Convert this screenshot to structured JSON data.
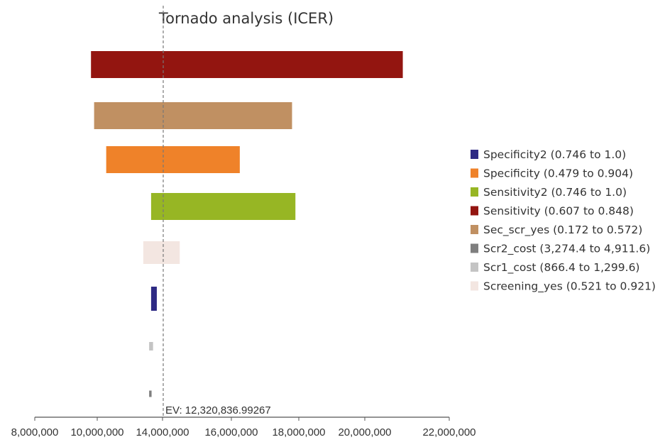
{
  "chart_data": {
    "type": "tornado",
    "title": "Tornado analysis (ICER)",
    "xlim": [
      8000000,
      22000000
    ],
    "x_ticks": [
      8000000,
      10000000,
      14000000,
      16000000,
      18000000,
      20000000,
      22000000
    ],
    "x_tick_labels": [
      "8,000,000",
      "10,000,000",
      "14,000,000",
      "16,000,000",
      "18,000,000",
      "20,000,000",
      "22,000,000"
    ],
    "ev": 12320836.99267,
    "ev_label": "EV: 12,320,836.99267",
    "bars": [
      {
        "parameter": "Sensitivity",
        "low": 9800000,
        "high": 20900000,
        "color": "#931510"
      },
      {
        "parameter": "Sec_scr_yes",
        "low": 9900000,
        "high": 17800000,
        "color": "#C09062"
      },
      {
        "parameter": "Specificity",
        "low": 10550000,
        "high": 16250000,
        "color": "#EF8229"
      },
      {
        "parameter": "Sensitivity2",
        "low": 13300000,
        "high": 17900000,
        "color": "#97B624"
      },
      {
        "parameter": "Screening_yes",
        "low": 12820000,
        "high": 14500000,
        "color": "#F3E6E1"
      },
      {
        "parameter": "Specificity2",
        "low": 13300000,
        "high": 13650000,
        "color": "#2E2A84"
      },
      {
        "parameter": "Scr1_cost",
        "low": 13180000,
        "high": 13420000,
        "color": "#C4C4C4"
      },
      {
        "parameter": "Scr2_cost",
        "low": 13180000,
        "high": 13330000,
        "color": "#7F7F7F"
      }
    ],
    "legend": [
      {
        "label": "Specificity2 (0.746 to 1.0)",
        "color": "#2E2A84"
      },
      {
        "label": "Specificity (0.479 to 0.904)",
        "color": "#EF8229"
      },
      {
        "label": "Sensitivity2 (0.746 to 1.0)",
        "color": "#97B624"
      },
      {
        "label": "Sensitivity (0.607 to 0.848)",
        "color": "#931510"
      },
      {
        "label": "Sec_scr_yes (0.172 to 0.572)",
        "color": "#C09062"
      },
      {
        "label": "Scr2_cost (3,274.4 to 4,911.6)",
        "color": "#7F7F7F"
      },
      {
        "label": "Scr1_cost (866.4 to 1,299.6)",
        "color": "#C4C4C4"
      },
      {
        "label": "Screening_yes (0.521 to 0.921)",
        "color": "#F3E6E1"
      }
    ],
    "legend_position": "right",
    "grid": false
  }
}
